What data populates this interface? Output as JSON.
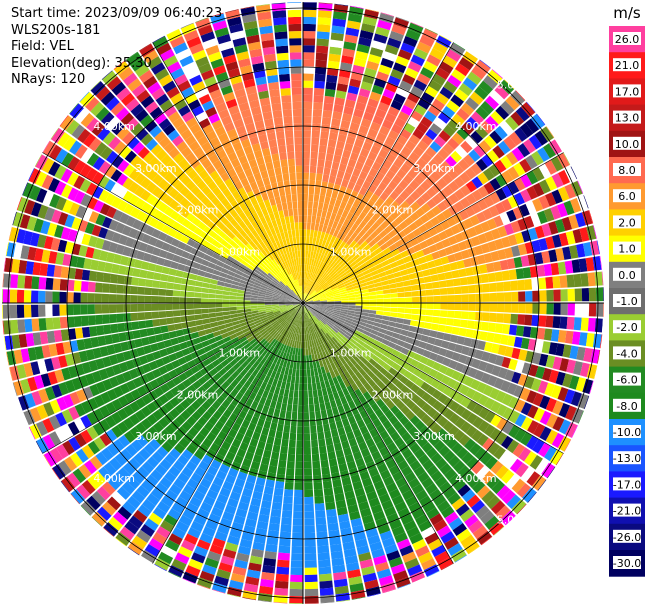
{
  "header": {
    "start_time": "Start time: 2023/09/09 06:40:23",
    "station": "WLS200s-181",
    "field": "Field: VEL",
    "elevation": "Elevation(deg): 35.30",
    "nrays": "NRays: 120"
  },
  "ppi": {
    "range_rings": [
      {
        "label": "1.00km",
        "km": 1
      },
      {
        "label": "2.00km",
        "km": 2
      },
      {
        "label": "3.00km",
        "km": 3
      },
      {
        "label": "4.00km",
        "km": 4
      },
      {
        "label": "5.00km",
        "km": 5
      }
    ],
    "nrays": 120,
    "max_range_km": 5.1
  },
  "colorbar": {
    "unit": "m/s",
    "ticks": [
      "26.0",
      "21.0",
      "17.0",
      "13.0",
      "10.0",
      "8.0",
      "6.0",
      "2.0",
      "1.0",
      "0.0",
      "-1.0",
      "-2.0",
      "-4.0",
      "-6.0",
      "-8.0",
      "-10.0",
      "-13.0",
      "-17.0",
      "-21.0",
      "-26.0",
      "-30.0"
    ],
    "colors": [
      "#ff3f9f",
      "#ff1a1a",
      "#e11a1a",
      "#c41a1a",
      "#a01414",
      "#ff6a50",
      "#ff9a30",
      "#ffd000",
      "#ffff00",
      "#7f7f7f",
      "#6e6e6e",
      "#9acd32",
      "#6b8e23",
      "#228b22",
      "#1e8a1e",
      "#1e90ff",
      "#1a55ff",
      "#1a1aff",
      "#1010b0",
      "#0a0a80",
      "#000060"
    ]
  }
}
